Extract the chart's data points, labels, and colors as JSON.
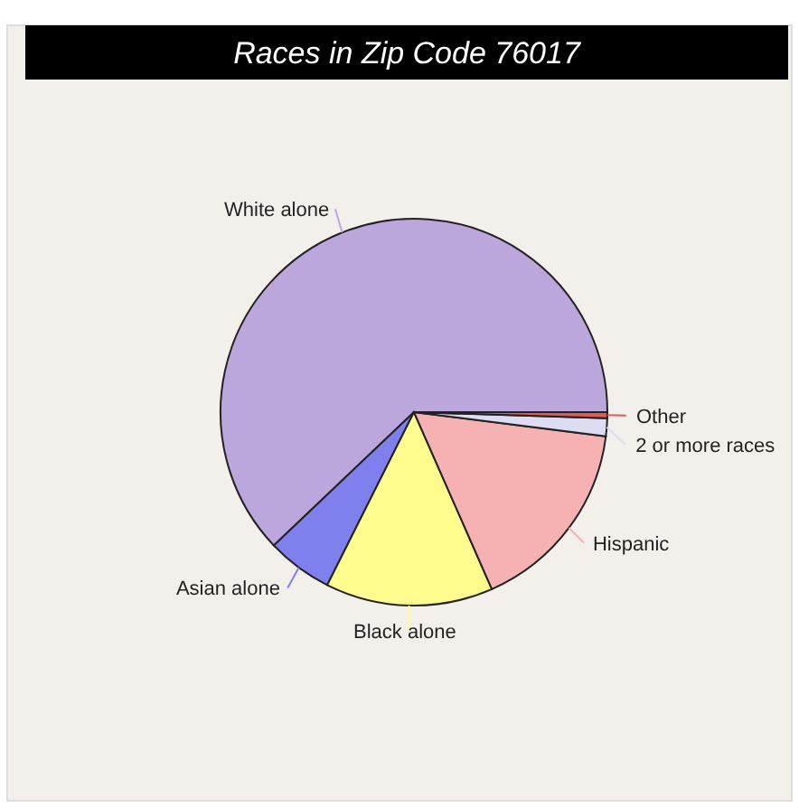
{
  "chart_data": {
    "type": "pie",
    "title": "Races in Zip Code 76017",
    "categories": [
      "White alone",
      "Asian alone",
      "Black alone",
      "Hispanic",
      "2 or more races",
      "Other"
    ],
    "values": [
      62.1,
      5.5,
      14,
      16.4,
      1.5,
      0.5
    ],
    "colors": [
      "#bba7dc",
      "#7f80ee",
      "#fdfc8c",
      "#f6b2b2",
      "#dcdcf2",
      "#e05a5a"
    ],
    "legend": false
  }
}
